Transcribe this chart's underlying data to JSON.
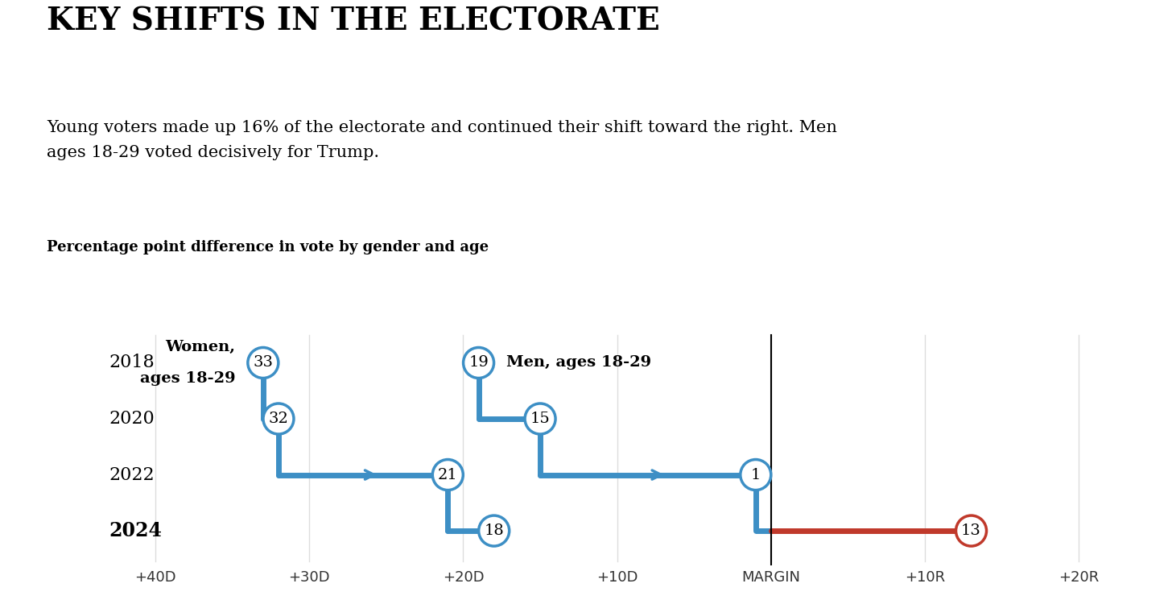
{
  "title": "KEY SHIFTS IN THE ELECTORATE",
  "subtitle": "Young voters made up 16% of the electorate and continued their shift toward the right. Men\nages 18-29 voted decisively for Trump.",
  "chart_label": "Percentage point difference in vote by gender and age",
  "background_color": "#ffffff",
  "years": [
    2018,
    2020,
    2022,
    2024
  ],
  "x_ticks": [
    -40,
    -30,
    -20,
    -10,
    0,
    10,
    20
  ],
  "x_tick_labels": [
    "+40D",
    "+30D",
    "+20D",
    "+10D",
    "MARGIN",
    "+10R",
    "+20R"
  ],
  "women_values": {
    "2018": -33,
    "2020": -32,
    "2022": -21,
    "2024": -18
  },
  "men_values": {
    "2018": -19,
    "2020": -15,
    "2022": -1,
    "2024": 13
  },
  "women_label_line1": "Women,",
  "women_label_line2": "ages 18-29",
  "men_label": "Men, ages 18-29",
  "blue_color": "#3d8fc5",
  "red_color": "#c0392b",
  "year_positions": {
    "2018": 3,
    "2020": 2,
    "2022": 1,
    "2024": 0
  },
  "xlim": [
    -44,
    23
  ],
  "ylim": [
    -0.7,
    3.8
  ]
}
